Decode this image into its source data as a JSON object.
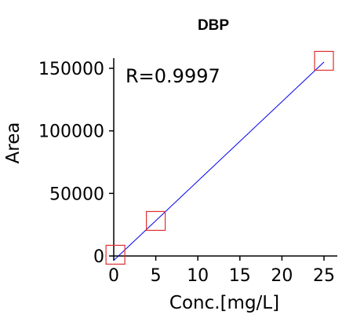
{
  "chart_data": {
    "type": "scatter",
    "title": "DBP",
    "xlabel": "Conc.[mg/L]",
    "ylabel": "Area",
    "xlim": [
      0,
      25
    ],
    "ylim": [
      0,
      150000
    ],
    "xticks": [
      0,
      5,
      10,
      15,
      20,
      25
    ],
    "yticks": [
      0,
      50000,
      100000,
      150000
    ],
    "annotation": "R=0.9997",
    "grid": false,
    "series": [
      {
        "points": [
          {
            "x": 0.2,
            "y": 1000
          },
          {
            "x": 5,
            "y": 28000
          },
          {
            "x": 25,
            "y": 156000
          }
        ]
      }
    ],
    "fit_line": {
      "x": [
        0,
        25
      ],
      "y": [
        -3500,
        155000
      ]
    },
    "colors": {
      "marker": "#e03030",
      "fit": "#0000ee",
      "axis": "#000000"
    }
  }
}
